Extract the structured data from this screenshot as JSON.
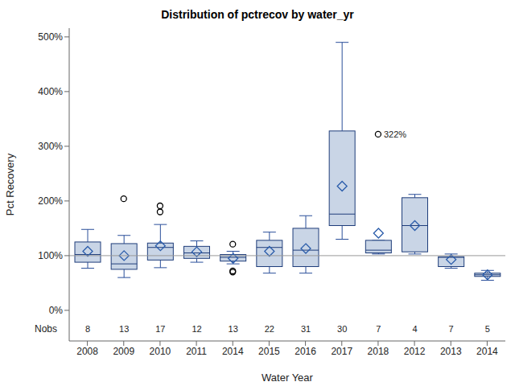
{
  "chart_data": {
    "type": "box",
    "title": "Distribution of pctrecov by water_yr",
    "x_label": "Water Year",
    "y_label": "Pct Recovery",
    "categories": [
      "2008",
      "2009",
      "2010",
      "2011",
      "2014",
      "2015",
      "2016",
      "2017",
      "2018",
      "2012",
      "2013",
      "2014"
    ],
    "boxes": {
      "min": [
        77,
        60,
        78,
        88,
        85,
        68,
        68,
        130,
        103,
        103,
        77,
        55
      ],
      "q1": [
        88,
        75,
        92,
        95,
        90,
        80,
        80,
        155,
        105,
        107,
        80,
        62
      ],
      "median": [
        102,
        85,
        115,
        105,
        97,
        115,
        110,
        176,
        110,
        155,
        97,
        65
      ],
      "q3": [
        125,
        122,
        123,
        117,
        102,
        128,
        150,
        328,
        128,
        206,
        98,
        68
      ],
      "max": [
        148,
        137,
        157,
        127,
        108,
        143,
        173,
        490,
        128,
        212,
        103,
        73
      ],
      "mean": [
        108,
        100,
        118,
        107,
        95,
        108,
        113,
        227,
        141,
        155,
        93,
        65
      ]
    },
    "outliers": [
      [],
      [
        204
      ],
      [
        180,
        191
      ],
      [],
      [
        70,
        72,
        121
      ],
      [],
      [],
      [],
      [
        322
      ],
      [],
      [],
      []
    ],
    "nobs": [
      8,
      13,
      17,
      12,
      13,
      22,
      31,
      30,
      7,
      4,
      7,
      5
    ],
    "nobs_label": "Nobs",
    "annotations": [
      {
        "text": "322%",
        "category_index": 8,
        "value": 322
      }
    ],
    "reference_line": 100,
    "ylim": [
      -56,
      516
    ],
    "yticks": [
      {
        "value": 0,
        "label": "0%"
      },
      {
        "value": 100,
        "label": "100%"
      },
      {
        "value": 200,
        "label": "200%"
      },
      {
        "value": 300,
        "label": "300%"
      },
      {
        "value": 400,
        "label": "400%"
      },
      {
        "value": 500,
        "label": "500%"
      }
    ],
    "color": "#c9d5e6",
    "grid": false
  }
}
